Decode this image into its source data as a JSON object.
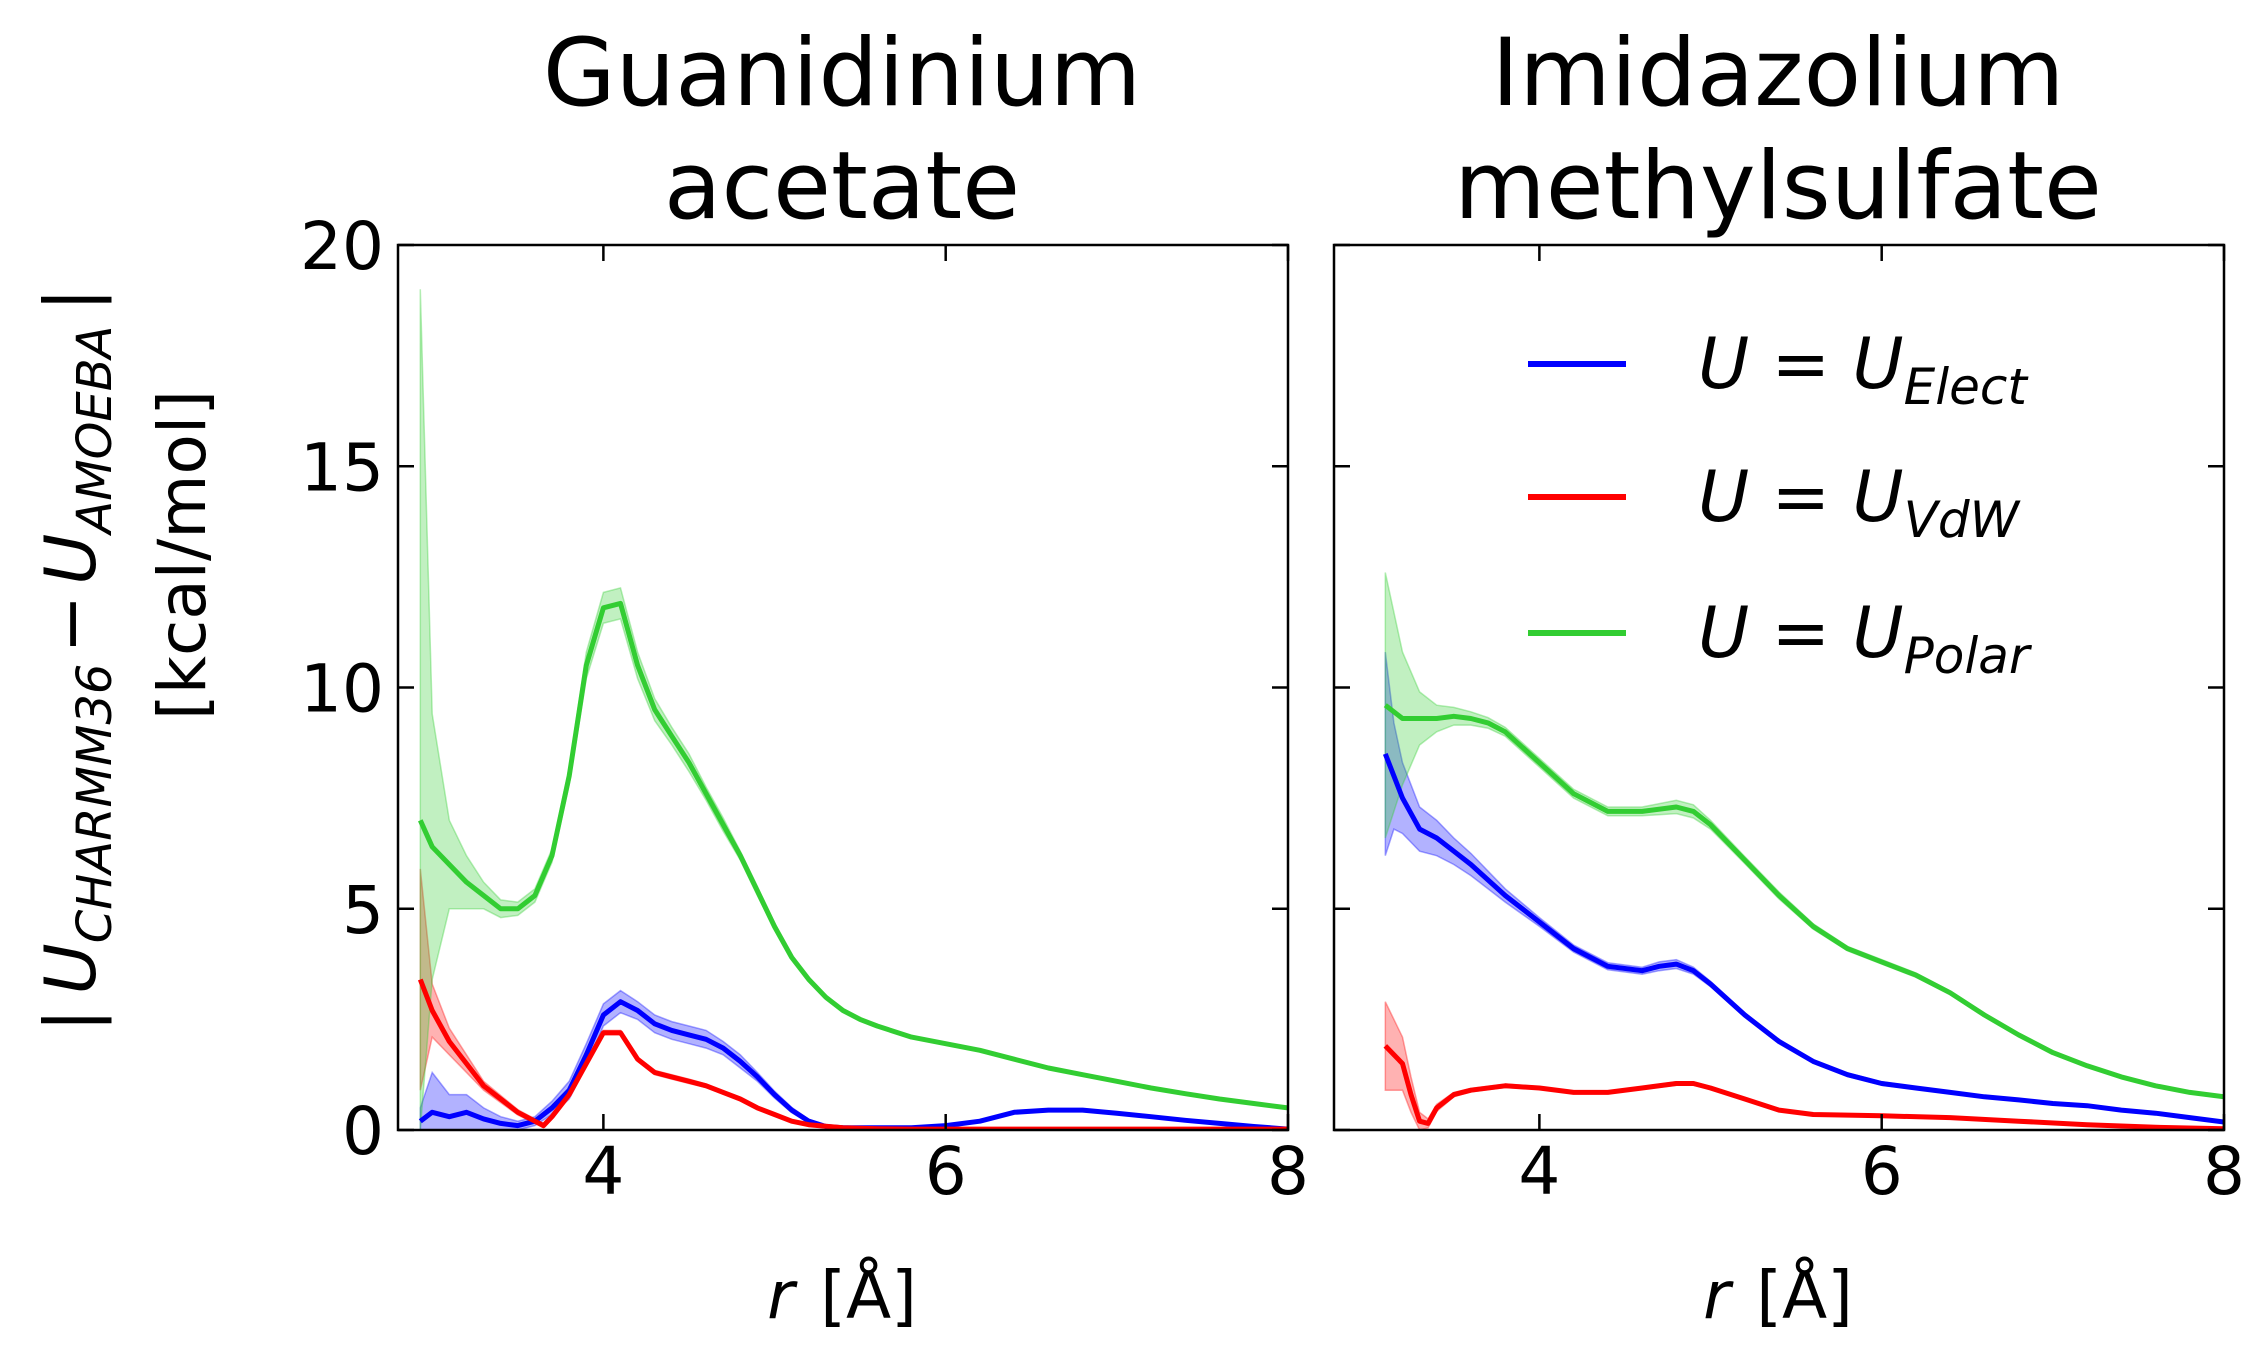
{
  "figure": {
    "ylabel": "| U_{CHARMM36} − U_{AMOEBA} |",
    "ylabel_parts": {
      "bar_left": "|",
      "u1": "U",
      "sub1": "CHARMM36",
      "minus": "−",
      "u2": "U",
      "sub2": "AMOEBA",
      "bar_right": "|"
    },
    "ylabel_units": "[kcal/mol]"
  },
  "legend": {
    "placement": "upper-right of right panel",
    "entries": [
      {
        "prefix": "U =  U",
        "sub": "Elect",
        "color": "#0000ff"
      },
      {
        "prefix": "U =  U",
        "sub": "VdW",
        "color": "#ff0000"
      },
      {
        "prefix": "U =  U",
        "sub": "Polar",
        "color": "#32cd32"
      }
    ]
  },
  "chart_data": [
    {
      "type": "line",
      "title_lines": [
        "Guanidinium",
        "acetate"
      ],
      "xlabel_var": "r",
      "xlabel_unit": "[Å]",
      "xlim": [
        2.8,
        8
      ],
      "ylim": [
        0,
        20
      ],
      "xticks": [
        4,
        6,
        8
      ],
      "yticks": [
        0,
        5,
        10,
        15,
        20
      ],
      "ytick_labels": [
        "0",
        "5",
        "10",
        "15",
        "20"
      ],
      "xtick_labels": [
        "4",
        "6",
        "8"
      ],
      "shaded_band": true,
      "series": [
        {
          "name": "U_Elect",
          "color": "#0000ff",
          "x": [
            2.93,
            3.0,
            3.1,
            3.2,
            3.3,
            3.4,
            3.5,
            3.6,
            3.7,
            3.8,
            3.9,
            4.0,
            4.1,
            4.2,
            4.3,
            4.4,
            4.5,
            4.6,
            4.7,
            4.8,
            4.9,
            5.0,
            5.1,
            5.2,
            5.3,
            5.4,
            5.6,
            5.8,
            6.0,
            6.2,
            6.4,
            6.6,
            6.8,
            7.0,
            7.2,
            7.4,
            7.6,
            7.8,
            8.0
          ],
          "y": [
            0.2,
            0.4,
            0.3,
            0.4,
            0.25,
            0.15,
            0.1,
            0.2,
            0.5,
            0.9,
            1.7,
            2.6,
            2.9,
            2.7,
            2.4,
            2.25,
            2.15,
            2.05,
            1.85,
            1.55,
            1.2,
            0.8,
            0.45,
            0.2,
            0.08,
            0.05,
            0.05,
            0.05,
            0.1,
            0.2,
            0.4,
            0.45,
            0.45,
            0.38,
            0.3,
            0.22,
            0.15,
            0.08,
            0.02
          ],
          "band": [
            0.3,
            0.9,
            0.5,
            0.4,
            0.25,
            0.15,
            0.1,
            0.1,
            0.15,
            0.2,
            0.25,
            0.25,
            0.25,
            0.2,
            0.2,
            0.2,
            0.2,
            0.2,
            0.15,
            0.15,
            0.1,
            0.08,
            0.06,
            0.04,
            0.03,
            0.02,
            0.02,
            0.02,
            0.02,
            0.02,
            0.02,
            0.02,
            0.02,
            0.02,
            0.02,
            0.02,
            0.02,
            0.02,
            0.02
          ]
        },
        {
          "name": "U_VdW",
          "color": "#ff0000",
          "x": [
            2.93,
            3.0,
            3.1,
            3.2,
            3.3,
            3.4,
            3.5,
            3.6,
            3.65,
            3.7,
            3.8,
            3.9,
            4.0,
            4.1,
            4.2,
            4.3,
            4.4,
            4.5,
            4.6,
            4.7,
            4.8,
            4.9,
            5.0,
            5.1,
            5.2,
            5.4,
            5.6,
            5.8,
            6.0,
            6.5,
            7.0,
            7.5,
            8.0
          ],
          "y": [
            3.4,
            2.7,
            2.0,
            1.5,
            1.0,
            0.7,
            0.4,
            0.2,
            0.1,
            0.3,
            0.8,
            1.5,
            2.2,
            2.2,
            1.6,
            1.3,
            1.2,
            1.1,
            1.0,
            0.85,
            0.7,
            0.5,
            0.35,
            0.2,
            0.12,
            0.05,
            0.03,
            0.02,
            0.02,
            0.02,
            0.02,
            0.02,
            0.02
          ],
          "band": [
            2.5,
            0.6,
            0.3,
            0.2,
            0.1,
            0.08,
            0.06,
            0.05,
            0.05,
            0.05,
            0.05,
            0.05,
            0.05,
            0.05,
            0.05,
            0.05,
            0.05,
            0.05,
            0.04,
            0.04,
            0.04,
            0.03,
            0.03,
            0.02,
            0.02,
            0.02,
            0.01,
            0.01,
            0.01,
            0.01,
            0.01,
            0.01,
            0.01
          ]
        },
        {
          "name": "U_Polar",
          "color": "#32cd32",
          "x": [
            2.93,
            3.0,
            3.1,
            3.2,
            3.3,
            3.4,
            3.5,
            3.6,
            3.7,
            3.8,
            3.9,
            4.0,
            4.1,
            4.2,
            4.3,
            4.4,
            4.5,
            4.6,
            4.7,
            4.8,
            4.9,
            5.0,
            5.1,
            5.2,
            5.3,
            5.4,
            5.5,
            5.6,
            5.8,
            6.0,
            6.2,
            6.4,
            6.6,
            6.8,
            7.0,
            7.2,
            7.4,
            7.6,
            7.8,
            8.0
          ],
          "y": [
            7.0,
            6.4,
            6.0,
            5.6,
            5.3,
            5.0,
            5.0,
            5.3,
            6.2,
            8.0,
            10.5,
            11.8,
            11.9,
            10.5,
            9.5,
            8.9,
            8.3,
            7.6,
            6.9,
            6.2,
            5.4,
            4.6,
            3.9,
            3.4,
            3.0,
            2.7,
            2.5,
            2.35,
            2.1,
            1.95,
            1.8,
            1.6,
            1.4,
            1.25,
            1.1,
            0.95,
            0.82,
            0.7,
            0.6,
            0.5
          ],
          "band": [
            12.0,
            3.0,
            1.0,
            0.6,
            0.3,
            0.2,
            0.15,
            0.15,
            0.15,
            0.2,
            0.3,
            0.35,
            0.35,
            0.3,
            0.25,
            0.2,
            0.2,
            0.15,
            0.15,
            0.1,
            0.1,
            0.08,
            0.06,
            0.05,
            0.05,
            0.04,
            0.04,
            0.03,
            0.03,
            0.02,
            0.02,
            0.02,
            0.02,
            0.02,
            0.02,
            0.02,
            0.02,
            0.02,
            0.02,
            0.02
          ]
        }
      ]
    },
    {
      "type": "line",
      "title_lines": [
        "Imidazolium",
        "methylsulfate"
      ],
      "xlabel_var": "r",
      "xlabel_unit": "[Å]",
      "xlim": [
        2.8,
        8
      ],
      "ylim": [
        0,
        20
      ],
      "xticks": [
        4,
        6,
        8
      ],
      "yticks": [
        0,
        5,
        10,
        15,
        20
      ],
      "ytick_labels": [],
      "xtick_labels": [
        "4",
        "6",
        "8"
      ],
      "shaded_band": true,
      "series": [
        {
          "name": "U_Elect",
          "color": "#0000ff",
          "x": [
            3.1,
            3.15,
            3.2,
            3.3,
            3.4,
            3.5,
            3.6,
            3.8,
            4.0,
            4.2,
            4.4,
            4.6,
            4.7,
            4.8,
            4.9,
            5.0,
            5.2,
            5.4,
            5.6,
            5.8,
            6.0,
            6.2,
            6.4,
            6.6,
            6.8,
            7.0,
            7.2,
            7.4,
            7.6,
            7.8,
            8.0
          ],
          "y": [
            8.5,
            8.0,
            7.5,
            6.8,
            6.6,
            6.3,
            6.0,
            5.3,
            4.7,
            4.1,
            3.7,
            3.6,
            3.7,
            3.75,
            3.6,
            3.3,
            2.6,
            2.0,
            1.55,
            1.25,
            1.05,
            0.95,
            0.85,
            0.75,
            0.68,
            0.6,
            0.55,
            0.45,
            0.38,
            0.28,
            0.18
          ],
          "band": [
            2.3,
            1.2,
            0.8,
            0.5,
            0.4,
            0.3,
            0.25,
            0.15,
            0.1,
            0.08,
            0.08,
            0.08,
            0.1,
            0.1,
            0.08,
            0.06,
            0.05,
            0.05,
            0.04,
            0.04,
            0.04,
            0.03,
            0.03,
            0.03,
            0.03,
            0.03,
            0.03,
            0.03,
            0.03,
            0.03,
            0.03
          ]
        },
        {
          "name": "U_VdW",
          "color": "#ff0000",
          "x": [
            3.1,
            3.2,
            3.25,
            3.3,
            3.35,
            3.4,
            3.5,
            3.6,
            3.8,
            4.0,
            4.2,
            4.4,
            4.6,
            4.8,
            4.9,
            5.0,
            5.2,
            5.4,
            5.6,
            6.0,
            6.4,
            6.8,
            7.2,
            7.6,
            8.0
          ],
          "y": [
            1.9,
            1.5,
            0.8,
            0.2,
            0.15,
            0.5,
            0.8,
            0.9,
            1.0,
            0.95,
            0.85,
            0.85,
            0.95,
            1.05,
            1.05,
            0.95,
            0.7,
            0.45,
            0.35,
            0.32,
            0.28,
            0.2,
            0.12,
            0.06,
            0.03
          ],
          "band": [
            1.0,
            0.6,
            0.4,
            0.2,
            0.1,
            0.08,
            0.05,
            0.04,
            0.04,
            0.03,
            0.03,
            0.03,
            0.03,
            0.04,
            0.04,
            0.03,
            0.03,
            0.02,
            0.02,
            0.02,
            0.02,
            0.02,
            0.02,
            0.02,
            0.02
          ]
        },
        {
          "name": "U_Polar",
          "color": "#32cd32",
          "x": [
            3.1,
            3.2,
            3.3,
            3.4,
            3.5,
            3.6,
            3.7,
            3.8,
            4.0,
            4.2,
            4.4,
            4.6,
            4.8,
            4.9,
            5.0,
            5.2,
            5.4,
            5.6,
            5.8,
            6.0,
            6.2,
            6.4,
            6.6,
            6.8,
            7.0,
            7.2,
            7.4,
            7.6,
            7.8,
            8.0
          ],
          "y": [
            9.6,
            9.3,
            9.3,
            9.3,
            9.35,
            9.3,
            9.2,
            9.0,
            8.3,
            7.6,
            7.2,
            7.2,
            7.3,
            7.2,
            6.9,
            6.1,
            5.3,
            4.6,
            4.1,
            3.8,
            3.5,
            3.1,
            2.6,
            2.15,
            1.75,
            1.45,
            1.2,
            1.0,
            0.85,
            0.75
          ],
          "band": [
            3.0,
            1.5,
            0.6,
            0.3,
            0.2,
            0.15,
            0.12,
            0.1,
            0.1,
            0.1,
            0.1,
            0.1,
            0.15,
            0.15,
            0.1,
            0.08,
            0.08,
            0.06,
            0.05,
            0.05,
            0.05,
            0.04,
            0.04,
            0.04,
            0.04,
            0.03,
            0.03,
            0.03,
            0.03,
            0.03
          ]
        }
      ]
    }
  ]
}
